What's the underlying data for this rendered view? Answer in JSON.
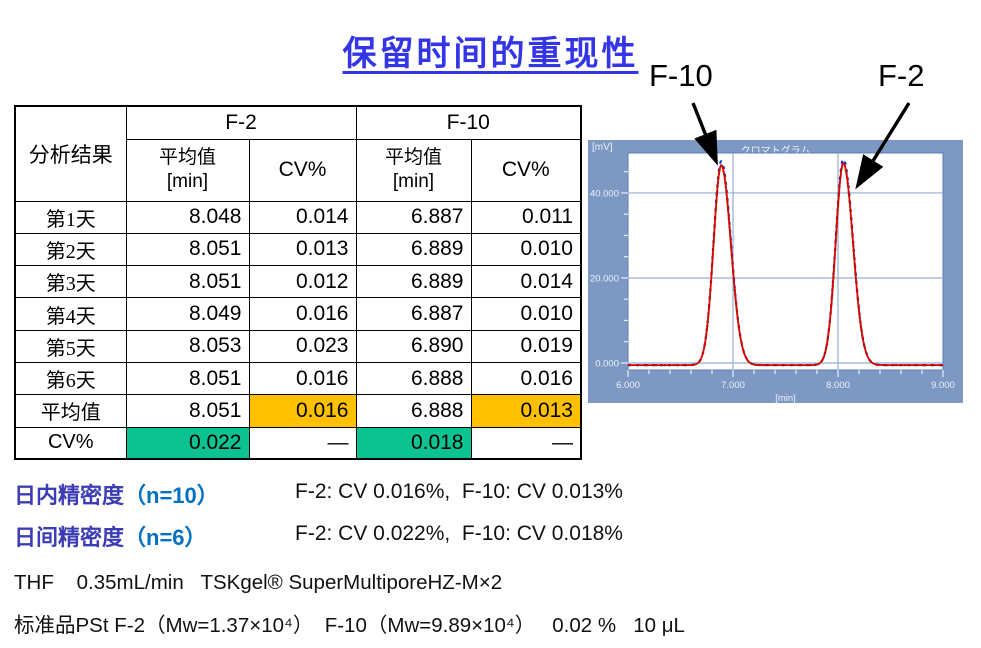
{
  "title": "保留时间的重现性",
  "annotations": {
    "left_peak_label": "F-10",
    "right_peak_label": "F-2"
  },
  "table": {
    "corner_header": "分析结果",
    "group_headers": [
      "F-2",
      "F-10"
    ],
    "mean_header_line1": "平均值",
    "mean_header_line2": "[min]",
    "cv_header": "CV%",
    "highlight_colors": {
      "orange": "#FFC000",
      "green": "#0CC290"
    },
    "rows": [
      {
        "label": "第1天",
        "values": [
          "8.048",
          "0.014",
          "6.887",
          "0.011"
        ],
        "highlights": [
          "",
          "",
          "",
          ""
        ]
      },
      {
        "label": "第2天",
        "values": [
          "8.051",
          "0.013",
          "6.889",
          "0.010"
        ],
        "highlights": [
          "",
          "",
          "",
          ""
        ]
      },
      {
        "label": "第3天",
        "values": [
          "8.051",
          "0.012",
          "6.889",
          "0.014"
        ],
        "highlights": [
          "",
          "",
          "",
          ""
        ]
      },
      {
        "label": "第4天",
        "values": [
          "8.049",
          "0.016",
          "6.887",
          "0.010"
        ],
        "highlights": [
          "",
          "",
          "",
          ""
        ]
      },
      {
        "label": "第5天",
        "values": [
          "8.053",
          "0.023",
          "6.890",
          "0.019"
        ],
        "highlights": [
          "",
          "",
          "",
          ""
        ]
      },
      {
        "label": "第6天",
        "values": [
          "8.051",
          "0.016",
          "6.888",
          "0.016"
        ],
        "highlights": [
          "",
          "",
          "",
          ""
        ]
      },
      {
        "label": "平均值",
        "values": [
          "8.051",
          "0.016",
          "6.888",
          "0.013"
        ],
        "highlights": [
          "",
          "orange",
          "",
          "orange"
        ]
      },
      {
        "label": "CV%",
        "values": [
          "0.022",
          "—",
          "0.018",
          "—"
        ],
        "highlights": [
          "green",
          "",
          "green",
          ""
        ]
      }
    ]
  },
  "chart_data": {
    "type": "line",
    "title": "クロマトグラム",
    "y_unit_label": "[mV]",
    "x_unit_label": "[min]",
    "xlim": [
      6.0,
      9.0
    ],
    "ylim": [
      -1.65,
      49.4
    ],
    "x_major_ticks": [
      6.0,
      7.0,
      8.0,
      9.0
    ],
    "x_tick_labels": [
      "6.000",
      "7.000",
      "8.000",
      "9.000"
    ],
    "x_minor_step": 0.2,
    "y_major_ticks": [
      0,
      20,
      40
    ],
    "y_tick_labels": [
      "0.000",
      "20.000",
      "40.000"
    ],
    "y_minor_step": 5,
    "grid_x": [
      7.0,
      8.0
    ],
    "grid_y": [
      0,
      20,
      40
    ],
    "grid_on": true,
    "baseline_mv": -0.5,
    "peaks": [
      {
        "name": "F-10",
        "retention_min": 6.888,
        "height_mv": 47.0,
        "sigma_min": 0.08
      },
      {
        "name": "F-2",
        "retention_min": 8.051,
        "height_mv": 47.5,
        "sigma_min": 0.08
      }
    ],
    "overlay_trace_colors": [
      "#D9C300",
      "#00A33C",
      "#0033CC",
      "#DC0000"
    ],
    "frame_color": "#7D99C3",
    "grid_color": "#94AFD2"
  },
  "summary": [
    {
      "label_cn": "日内精密度",
      "label_n": "（n=10）",
      "value": "F-2: CV 0.016%,  F-10: CV 0.013%"
    },
    {
      "label_cn": "日间精密度",
      "label_n": "（n=6）",
      "value": "F-2: CV 0.022%,  F-10: CV 0.018%"
    }
  ],
  "conditions": [
    {
      "text": "THF    0.35mL/min   TSKgel® SuperMultiporeHZ-M×2"
    },
    {
      "text": "标准品PSt F-2（Mw=1.37×10⁴）  F-10（Mw=9.89×10⁴）   0.02 %   10 μL"
    }
  ]
}
